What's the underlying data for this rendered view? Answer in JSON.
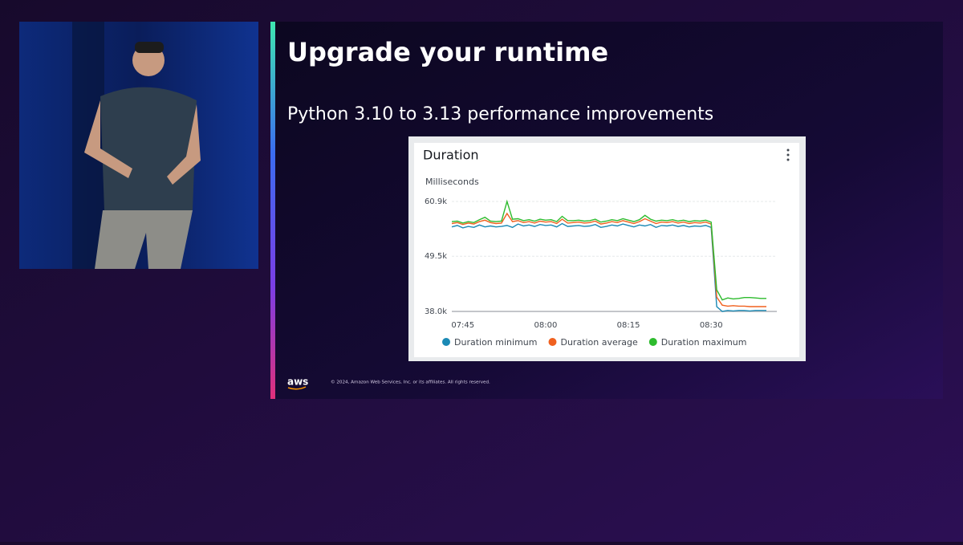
{
  "slide": {
    "title": "Upgrade your runtime",
    "subtitle": "Python 3.10 to 3.13 performance improvements",
    "footer": {
      "logo": "aws",
      "copyright": "© 2024, Amazon Web Services, Inc. or its affiliates. All rights reserved."
    }
  },
  "chart_data": {
    "type": "line",
    "title": "Duration",
    "y_label": "Milliseconds",
    "categories": [
      null,
      null,
      "07:45",
      null,
      null,
      null,
      null,
      null,
      null,
      null,
      null,
      null,
      null,
      null,
      null,
      null,
      null,
      "08:00",
      null,
      null,
      null,
      null,
      null,
      null,
      null,
      null,
      null,
      null,
      null,
      null,
      null,
      null,
      "08:15",
      null,
      null,
      null,
      null,
      null,
      null,
      null,
      null,
      null,
      null,
      null,
      null,
      null,
      null,
      "08:30",
      null,
      null,
      null,
      null,
      null,
      null,
      null,
      null,
      null,
      null
    ],
    "series": [
      {
        "name": "Duration minimum",
        "color": "#1b8ab5",
        "values": [
          55600,
          55900,
          55400,
          55700,
          55500,
          56000,
          55600,
          55800,
          55600,
          55700,
          55900,
          55500,
          56200,
          55800,
          56000,
          55700,
          56100,
          55900,
          56000,
          55600,
          56300,
          55700,
          55800,
          55900,
          55700,
          55800,
          56100,
          55500,
          55700,
          56000,
          55800,
          56200,
          55900,
          55600,
          56000,
          55800,
          56100,
          55500,
          55900,
          55800,
          56000,
          55700,
          55900,
          55600,
          55800,
          55700,
          55900,
          55500,
          39000,
          38000,
          38200,
          38100,
          38200,
          38200,
          38100,
          38200,
          38200,
          38200
        ]
      },
      {
        "name": "Duration average",
        "color": "#f0611f",
        "values": [
          56300,
          56500,
          56100,
          56400,
          56200,
          56700,
          57000,
          56500,
          56300,
          56400,
          58400,
          56700,
          56900,
          56500,
          56700,
          56400,
          56800,
          56600,
          56700,
          56300,
          57200,
          56400,
          56500,
          56600,
          56400,
          56500,
          56800,
          56200,
          56400,
          56700,
          56500,
          56900,
          56600,
          56300,
          56700,
          57300,
          56800,
          56300,
          56600,
          56500,
          56700,
          56400,
          56600,
          56300,
          56500,
          56400,
          56600,
          56200,
          41000,
          39300,
          39100,
          39200,
          39100,
          39100,
          39000,
          39000,
          39000,
          39000
        ]
      },
      {
        "name": "Duration maximum",
        "color": "#2dbb2d",
        "values": [
          56700,
          56800,
          56400,
          56700,
          56500,
          57100,
          57600,
          56800,
          56700,
          56800,
          60900,
          57200,
          57300,
          56900,
          57100,
          56800,
          57200,
          57000,
          57100,
          56700,
          57800,
          56900,
          56900,
          57000,
          56800,
          56900,
          57200,
          56600,
          56800,
          57100,
          56900,
          57300,
          57000,
          56700,
          57100,
          58000,
          57200,
          56800,
          57000,
          56900,
          57100,
          56800,
          57000,
          56700,
          56900,
          56800,
          57000,
          56600,
          42500,
          40400,
          40800,
          40600,
          40700,
          40900,
          40900,
          40800,
          40700,
          40700
        ]
      }
    ],
    "ylim": [
      38000,
      60900
    ],
    "yticks": [
      {
        "value": 38000,
        "label": "38.0k"
      },
      {
        "value": 49500,
        "label": "49.5k"
      },
      {
        "value": 60900,
        "label": "60.9k"
      }
    ],
    "grid": true,
    "legend": "bottom"
  }
}
